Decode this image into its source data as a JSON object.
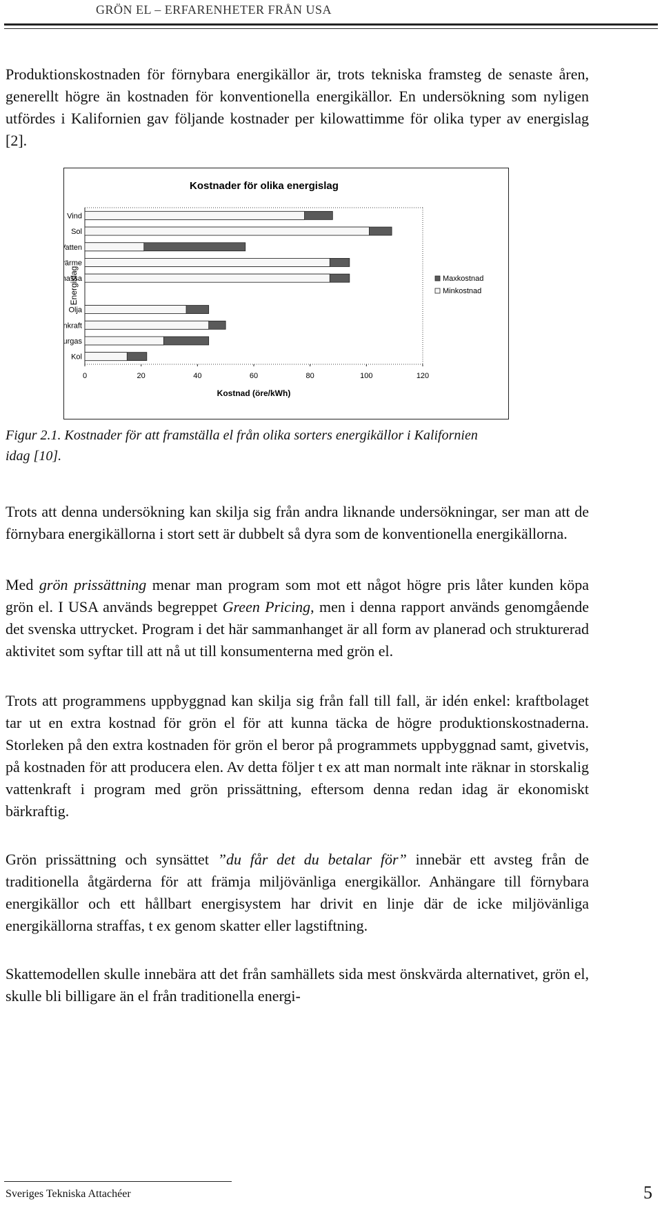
{
  "header": {
    "title": "GRÖN EL – ERFARENHETER FRÅN USA"
  },
  "intro": "Produktionskostnaden för förnybara energikällor är, trots tekniska framsteg de senaste åren, generellt högre än kostnaden för konventionella energikällor. En undersökning som nyligen utfördes i Kalifornien gav följande kostnader per kilowattimme för olika typer av energislag [2].",
  "chart_data": {
    "type": "bar",
    "orientation": "horizontal",
    "overlap": true,
    "title": "Kostnader för olika energislag",
    "x_label": "Kostnad (öre/kWh)",
    "y_label": "Energislag",
    "categories": [
      "Vind",
      "Sol",
      "Vatten",
      "Jordvärme",
      "Biomassa",
      null,
      "Olja",
      "Kärnkraft",
      "Naturgas",
      "Kol"
    ],
    "series": [
      {
        "name": "Maxkostnad",
        "color": "#5a5a5a",
        "values": [
          88,
          109,
          57,
          94,
          94,
          null,
          44,
          50,
          44,
          22
        ]
      },
      {
        "name": "Minkostnad",
        "color": "#f7f7f7",
        "values": [
          78,
          101,
          21,
          87,
          87,
          null,
          36,
          44,
          28,
          15
        ]
      }
    ],
    "xlim": [
      0,
      120
    ],
    "xticks": [
      0,
      20,
      40,
      60,
      80,
      100,
      120
    ],
    "legend": "right"
  },
  "caption": "Figur 2.1. Kostnader för att framställa el från olika sorters energikällor i Kalifornien idag [10].",
  "paragraphs": [
    [
      "Trots att denna undersökning kan skilja sig från andra liknande undersökningar, ser man att de förnybara energikällorna i stort sett är dubbelt så dyra som de konventionella energikällorna."
    ],
    [
      "Med ",
      "grön prissättning",
      " menar man program som mot ett något högre pris låter kunden köpa grön el. I USA används begreppet ",
      "Green Pricing",
      ", men i denna rapport används genomgående det svenska uttrycket. Program i det här sammanhanget är all form av planerad och strukturerad aktivitet som syftar till att nå ut till konsumenterna med grön el."
    ],
    [
      "Trots att programmens uppbyggnad kan skilja sig från fall till fall, är idén enkel: kraftbolaget tar ut en extra kostnad för grön el för att kunna täcka de högre produktionskostnaderna. Storleken på den extra kostnaden för grön el beror på programmets uppbyggnad samt, givetvis, på kostnaden för att producera elen. Av detta följer t ex att man normalt inte räknar in storskalig vattenkraft i program med grön prissättning, eftersom denna redan idag är ekonomiskt bärkraftig."
    ],
    [
      "Grön prissättning och synsättet ",
      "”du får det du betalar för”",
      " innebär ett avsteg från de traditionella åtgärderna för att främja miljövänliga energikällor. Anhängare till förnybara energikällor och ett hållbart energisystem har drivit en linje där de icke miljövänliga energikällorna straffas, t ex genom skatter eller lagstiftning."
    ],
    [
      "Skattemodellen skulle innebära att det från samhällets sida mest önskvärda alternativet, grön el, skulle bli billigare än el från traditionella energi-"
    ]
  ],
  "footer": {
    "left": "Sveriges Tekniska Attachéer",
    "page": "5"
  }
}
